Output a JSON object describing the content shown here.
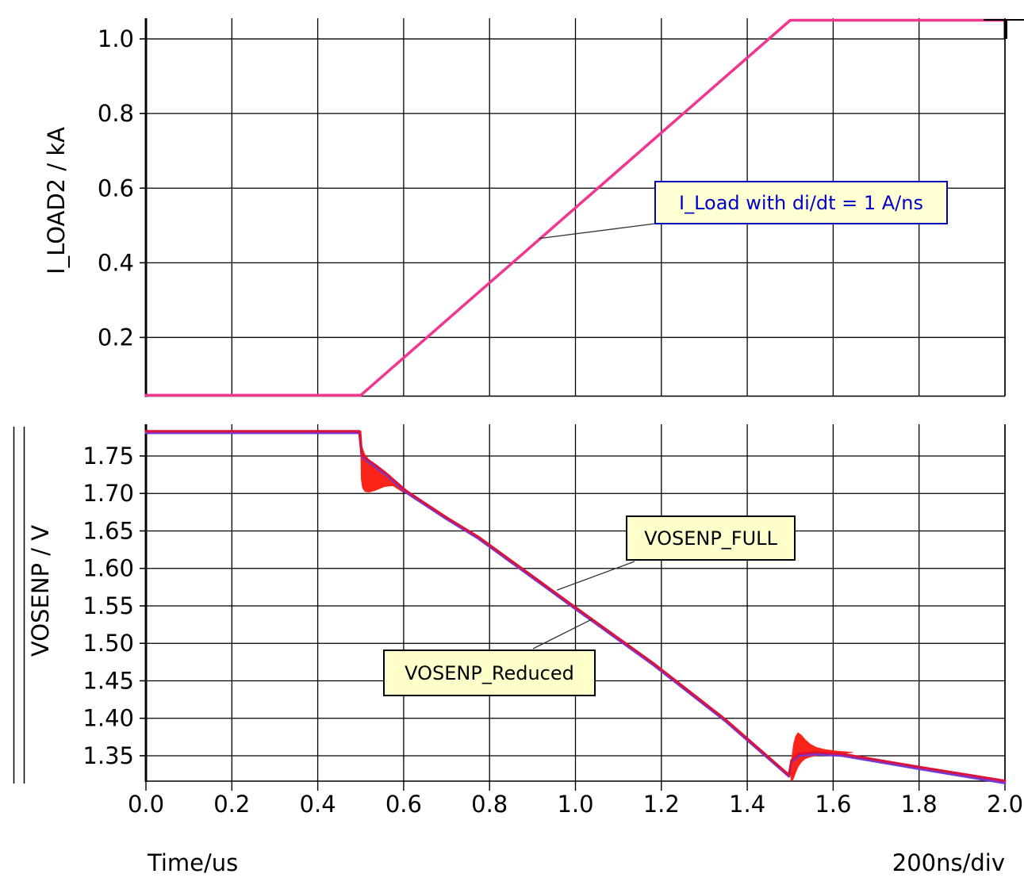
{
  "x_axis": {
    "label": "Time/us",
    "scale_label": "200ns/div",
    "min": 0.0,
    "max": 2.0,
    "ticks": [
      {
        "v": 0.0,
        "label": "0.0"
      },
      {
        "v": 0.2,
        "label": "0.2"
      },
      {
        "v": 0.4,
        "label": "0.4"
      },
      {
        "v": 0.6,
        "label": "0.6"
      },
      {
        "v": 0.8,
        "label": "0.8"
      },
      {
        "v": 1.0,
        "label": "1.0"
      },
      {
        "v": 1.2,
        "label": "1.2"
      },
      {
        "v": 1.4,
        "label": "1.4"
      },
      {
        "v": 1.6,
        "label": "1.6"
      },
      {
        "v": 1.8,
        "label": "1.8"
      },
      {
        "v": 2.0,
        "label": "2.0"
      }
    ]
  },
  "annotations": {
    "iload": {
      "text": "I_Load with di/dt = 1 A/ns",
      "target": {
        "t": 0.915,
        "v": 0.465
      }
    },
    "vosenp_full": {
      "text": "VOSENP_FULL",
      "target": {
        "t": 0.957,
        "v": 1.571
      }
    },
    "vosenp_reduced": {
      "text": "VOSENP_Reduced",
      "target": {
        "t": 1.038,
        "v": 1.532
      }
    }
  },
  "colors": {
    "grid": "#000000",
    "iload_line": "#f0368e",
    "vosenp_full_line": "#dc1238",
    "vosenp_reduced_line": "#7338d8",
    "ringing_envelope": "#fb2418",
    "annotation_blue": "#0000cd",
    "annotation_yellow_bg": "#ffffcc"
  },
  "chart_data": [
    {
      "type": "line",
      "ylabel": "I_LOAD2 / kA",
      "ylim": {
        "min": 0.0426,
        "max": 1.0554
      },
      "grid": true,
      "y_ticks": [
        {
          "v": 1.0,
          "label": "1.0"
        },
        {
          "v": 0.8,
          "label": "0.8"
        },
        {
          "v": 0.6,
          "label": "0.6"
        },
        {
          "v": 0.4,
          "label": "0.4"
        },
        {
          "v": 0.2,
          "label": "0.2"
        }
      ],
      "series": [
        {
          "name": "I_LOAD2",
          "color": "#f0368e",
          "width": 3.5,
          "points": [
            [
              0.0,
              0.045
            ],
            [
              0.5,
              0.045
            ],
            [
              1.5,
              1.05
            ],
            [
              2.0,
              1.05
            ]
          ]
        }
      ],
      "envelopes": []
    },
    {
      "type": "line",
      "ylabel": "VOSENP / V",
      "ylim": {
        "min": 1.3161,
        "max": 1.7923
      },
      "grid": true,
      "y_ticks": [
        {
          "v": 1.75,
          "label": "1.75"
        },
        {
          "v": 1.7,
          "label": "1.70"
        },
        {
          "v": 1.65,
          "label": "1.65"
        },
        {
          "v": 1.6,
          "label": "1.60"
        },
        {
          "v": 1.55,
          "label": "1.55"
        },
        {
          "v": 1.5,
          "label": "1.50"
        },
        {
          "v": 1.45,
          "label": "1.45"
        },
        {
          "v": 1.4,
          "label": "1.40"
        },
        {
          "v": 1.35,
          "label": "1.35"
        }
      ],
      "series": [
        {
          "name": "VOSENP_Reduced",
          "color": "#7338d8",
          "width": 3,
          "points": [
            [
              0.0,
              1.7808
            ],
            [
              0.497,
              1.7808
            ],
            [
              0.503,
              1.7495
            ],
            [
              0.515,
              1.7432
            ],
            [
              0.535,
              1.7352
            ],
            [
              0.56,
              1.7242
            ],
            [
              0.607,
              1.7008
            ],
            [
              0.7,
              1.6658
            ],
            [
              0.774,
              1.6398
            ],
            [
              0.88,
              1.5958
            ],
            [
              1.0,
              1.5458
            ],
            [
              1.18,
              1.4718
            ],
            [
              1.35,
              1.3958
            ],
            [
              1.497,
              1.3225
            ],
            [
              1.503,
              1.3415
            ],
            [
              1.52,
              1.3501
            ],
            [
              1.56,
              1.3521
            ],
            [
              1.62,
              1.3501
            ],
            [
              1.8,
              1.3325
            ],
            [
              2.0,
              1.3135
            ]
          ]
        },
        {
          "name": "VOSENP_FULL",
          "color": "#dc1238",
          "width": 3,
          "points": [
            [
              0.0,
              1.783
            ],
            [
              0.497,
              1.783
            ],
            [
              0.502,
              1.752
            ],
            [
              0.515,
              1.7455
            ],
            [
              0.535,
              1.7375
            ],
            [
              0.56,
              1.7265
            ],
            [
              0.607,
              1.703
            ],
            [
              0.7,
              1.668
            ],
            [
              0.774,
              1.642
            ],
            [
              0.88,
              1.598
            ],
            [
              1.0,
              1.548
            ],
            [
              1.18,
              1.474
            ],
            [
              1.35,
              1.398
            ],
            [
              1.497,
              1.3245
            ],
            [
              1.503,
              1.344
            ],
            [
              1.52,
              1.3525
            ],
            [
              1.56,
              1.3545
            ],
            [
              1.62,
              1.3525
            ],
            [
              1.8,
              1.335
            ],
            [
              2.0,
              1.3165
            ]
          ]
        }
      ],
      "envelopes": [
        {
          "name": "ringing-at-0.5us",
          "color": "#fb2418",
          "polygon": [
            [
              0.5005,
              1.7835
            ],
            [
              0.503,
              1.762
            ],
            [
              0.509,
              1.7525
            ],
            [
              0.518,
              1.7455
            ],
            [
              0.532,
              1.7385
            ],
            [
              0.552,
              1.7295
            ],
            [
              0.578,
              1.7175
            ],
            [
              0.603,
              1.7055
            ],
            [
              0.598,
              1.7018
            ],
            [
              0.575,
              1.7105
            ],
            [
              0.555,
              1.7092
            ],
            [
              0.535,
              1.7045
            ],
            [
              0.52,
              1.7018
            ],
            [
              0.51,
              1.7025
            ],
            [
              0.5045,
              1.7075
            ],
            [
              0.5015,
              1.7185
            ],
            [
              0.5002,
              1.7555
            ]
          ]
        },
        {
          "name": "ringing-at-1.5us",
          "color": "#fb2418",
          "polygon": [
            [
              1.5008,
              1.3245
            ],
            [
              1.5022,
              1.3335
            ],
            [
              1.5045,
              1.3505
            ],
            [
              1.508,
              1.3655
            ],
            [
              1.5125,
              1.3755
            ],
            [
              1.518,
              1.3805
            ],
            [
              1.5255,
              1.3775
            ],
            [
              1.5345,
              1.3715
            ],
            [
              1.546,
              1.3655
            ],
            [
              1.561,
              1.361
            ],
            [
              1.582,
              1.358
            ],
            [
              1.61,
              1.356
            ],
            [
              1.645,
              1.3545
            ],
            [
              1.61,
              1.3525
            ],
            [
              1.582,
              1.3515
            ],
            [
              1.561,
              1.3502
            ],
            [
              1.546,
              1.3485
            ],
            [
              1.5345,
              1.346
            ],
            [
              1.5255,
              1.3415
            ],
            [
              1.518,
              1.335
            ],
            [
              1.5125,
              1.3275
            ],
            [
              1.508,
              1.3205
            ],
            [
              1.5045,
              1.3165
            ],
            [
              1.5022,
              1.3175
            ]
          ]
        }
      ]
    }
  ]
}
